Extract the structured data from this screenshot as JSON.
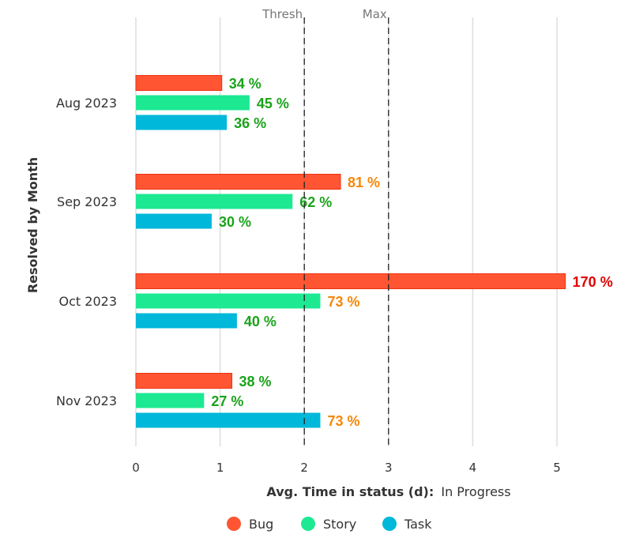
{
  "chart_data": {
    "type": "bar",
    "orientation": "horizontal",
    "categories": [
      "Aug 2023",
      "Sep 2023",
      "Oct 2023",
      "Nov 2023"
    ],
    "series": [
      {
        "name": "Bug",
        "color": "#ff5533",
        "values": [
          1.02,
          2.43,
          5.1,
          1.14
        ],
        "labels": [
          "34 %",
          "81 %",
          "170 %",
          "38 %"
        ]
      },
      {
        "name": "Story",
        "color": "#1de993",
        "values": [
          1.35,
          1.86,
          2.19,
          0.81
        ],
        "labels": [
          "45 %",
          "62 %",
          "73 %",
          "27 %"
        ]
      },
      {
        "name": "Task",
        "color": "#00b8d9",
        "values": [
          1.08,
          0.9,
          1.2,
          2.19
        ],
        "labels": [
          "36 %",
          "30 %",
          "40 %",
          "73 %"
        ]
      }
    ],
    "label_colors": {
      "ok": "#1aa31a",
      "warn": "#f5870a",
      "over": "#e00000"
    },
    "xlim": [
      0,
      5
    ],
    "xticks": [
      "0",
      "1",
      "2",
      "3",
      "4",
      "5"
    ],
    "xlabel_bold": "Avg. Time in status (d):",
    "xlabel_rest": "In Progress",
    "ylabel": "Resolved by Month",
    "reference_lines": [
      {
        "label": "Thresh",
        "value": 2
      },
      {
        "label": "Max",
        "value": 3
      }
    ],
    "grid": true,
    "legend_position": "bottom"
  }
}
